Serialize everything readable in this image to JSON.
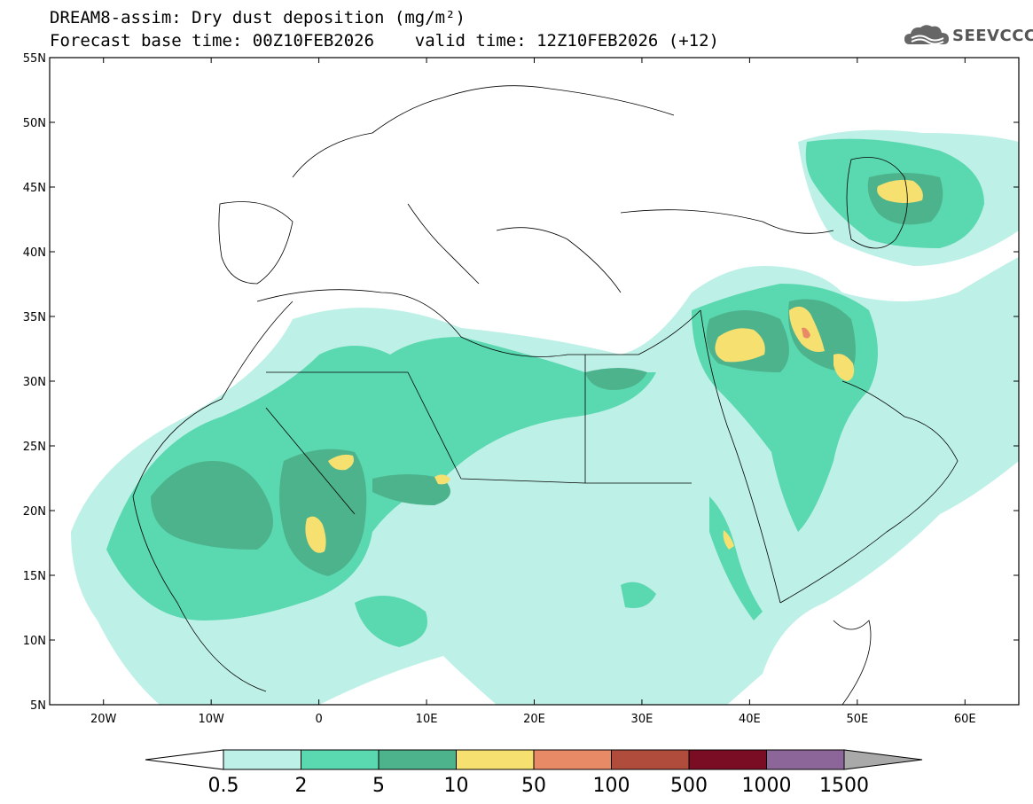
{
  "header": {
    "title_line1": "DREAM8-assim: Dry dust deposition (mg/m²)",
    "title_line2": "Forecast base time: 00Z10FEB2026    valid time: 12Z10FEB2026 (+12)",
    "logo_text": "SEEVCCC"
  },
  "map": {
    "lon_range": [
      -25,
      65
    ],
    "lat_range": [
      5,
      55
    ],
    "lat_ticks": [
      "5N",
      "10N",
      "15N",
      "20N",
      "25N",
      "30N",
      "35N",
      "40N",
      "45N",
      "50N",
      "55N"
    ],
    "lon_ticks": [
      "20W",
      "10W",
      "0",
      "10E",
      "20E",
      "30E",
      "40E",
      "50E",
      "60E"
    ]
  },
  "colorbar": {
    "labels": [
      "0.5",
      "2",
      "5",
      "10",
      "50",
      "100",
      "500",
      "1000",
      "1500"
    ],
    "colors": [
      "#bdf0e6",
      "#5ad8b0",
      "#4db38c",
      "#f5e070",
      "#e88a66",
      "#b04c3c",
      "#7a0c24",
      "#8c6699"
    ],
    "low_arrow_color": "#ffffff",
    "high_arrow_color": "#a9a9a9"
  }
}
